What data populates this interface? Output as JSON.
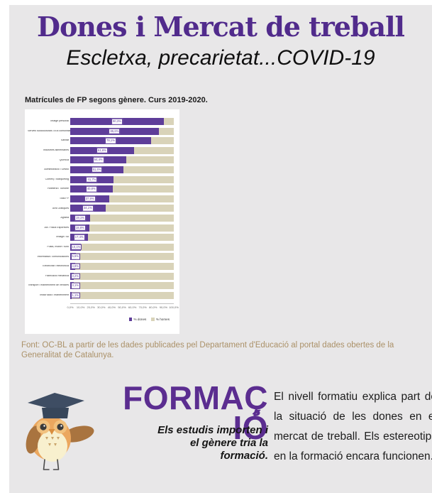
{
  "header": {
    "title": "Dones i Mercat de treball",
    "subtitle": "Escletxa, precarietat...COVID-19"
  },
  "chart": {
    "caption": "Matrícules de FP segons gènere. Curs 2019-2020.",
    "source": "Font: OC-BL a partir de les dades publicades pel Departament d'Educació al portal dades obertes de la Generalitat de Catalunya."
  },
  "chart_data": {
    "type": "bar",
    "orientation": "horizontal",
    "stacked_100_percent": true,
    "title": "Matrícules de FP segons gènere. Curs 2019-2020.",
    "categories": [
      "Imatge personal",
      "Serveis socioculturals i a la comunitat",
      "Sanitat",
      "Indústries alimentàries",
      "Química",
      "Administració i Gestió",
      "Comerç i Màrqueting",
      "Hoteleria i Turisme",
      "Total FP",
      "Arts Gràfiques",
      "Agrària",
      "Act. Física Esportives",
      "Imatge i so",
      "Fusta, moble i suro",
      "Informàtica i comunicacions",
      "Electricitat i electrònica",
      "Fabricació mecànica",
      "Transport i manteniment de vehicles",
      "Instal·lació i manteniment"
    ],
    "series": [
      {
        "name": "% dones",
        "color": "#5e3d99",
        "values": [
          90.3,
          85.6,
          78.1,
          61.6,
          54.4,
          51.4,
          41.7,
          40.8,
          37.9,
          34.1,
          19.1,
          18.8,
          17.4,
          10.1,
          5.6,
          4.8,
          3.2,
          3.1,
          1.1
        ]
      },
      {
        "name": "% homes",
        "color": "#d9d3b9",
        "values": [
          9.7,
          14.4,
          21.9,
          38.4,
          45.6,
          48.6,
          58.3,
          59.2,
          62.1,
          65.9,
          80.9,
          81.2,
          82.6,
          89.9,
          94.4,
          95.2,
          96.8,
          96.9,
          98.9
        ]
      }
    ],
    "value_labels": [
      "90,3%",
      "85,6%",
      "78,1%",
      "61,6%",
      "54,4%",
      "51,4%",
      "41,7%",
      "40,8%",
      "37,9%",
      "34,1%",
      "19,1%",
      "18,8%",
      "17,4%",
      "10,1%",
      "5,6%",
      "4,8%",
      "3,2%",
      "3,1%",
      "1,1%"
    ],
    "x_ticks": [
      "0,0%",
      "10,0%",
      "20,0%",
      "30,0%",
      "40,0%",
      "50,0%",
      "60,0%",
      "70,0%",
      "80,0%",
      "90,0%",
      "100,0%"
    ],
    "xlim": [
      0,
      100
    ],
    "grid": false,
    "legend_position": "bottom-right",
    "legend": [
      "% dones",
      "% homes"
    ]
  },
  "formacio": {
    "heading_line1": "FORMAÇ",
    "heading_line2": "IÓ",
    "tagline": "Els estudis importen i el gènere tria la formació.",
    "paragraph": "El nivell formatiu explica part de la situació de les dones en el mercat de treball. Els estereotips en la formació encara funcionen."
  },
  "colors": {
    "title_purple": "#512b8c",
    "heading_purple": "#5b2d90",
    "bar_dones": "#5e3d99",
    "bar_homes": "#d9d3b9",
    "source_tan": "#ab9168",
    "background_gray": "#e8e7e8"
  },
  "icons": {
    "owl": "owl-graduate-icon"
  }
}
